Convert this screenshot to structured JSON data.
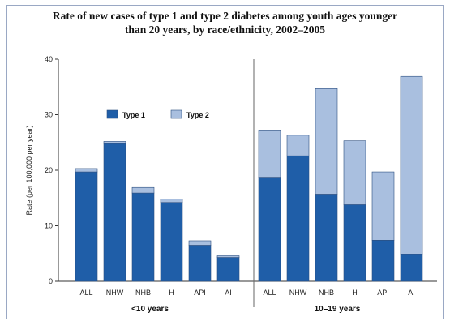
{
  "chart_data": {
    "type": "bar",
    "stacked": true,
    "title_line1": "Rate of new cases of type 1 and type 2 diabetes among youth ages younger",
    "title_line2": "than 20 years, by race/ethnicity, 2002–2005",
    "ylabel": "Rate (per 100,000 per year)",
    "ylim": [
      0,
      40
    ],
    "yticks": [
      "0",
      "10",
      "20",
      "30",
      "40"
    ],
    "grid": false,
    "legend_position": "upper-left",
    "colors": {
      "type1": "#1f5ea8",
      "type2": "#a9bfdf"
    },
    "groups": [
      {
        "label": "<10 years",
        "categories": [
          "ALL",
          "NHW",
          "NHB",
          "H",
          "API",
          "AI"
        ],
        "series": [
          {
            "name": "Type 1",
            "values": [
              19.7,
              24.8,
              15.9,
              14.2,
              6.5,
              4.3
            ]
          },
          {
            "name": "Type 2",
            "values": [
              0.6,
              0.4,
              1.0,
              0.6,
              0.8,
              0.3
            ]
          }
        ]
      },
      {
        "label": "10–19 years",
        "categories": [
          "ALL",
          "NHW",
          "NHB",
          "H",
          "API",
          "AI"
        ],
        "series": [
          {
            "name": "Type 1",
            "values": [
              18.6,
              22.6,
              15.7,
              13.8,
              7.4,
              4.8
            ]
          },
          {
            "name": "Type 2",
            "values": [
              8.5,
              3.7,
              19.0,
              11.5,
              12.3,
              32.1
            ]
          }
        ]
      }
    ]
  }
}
